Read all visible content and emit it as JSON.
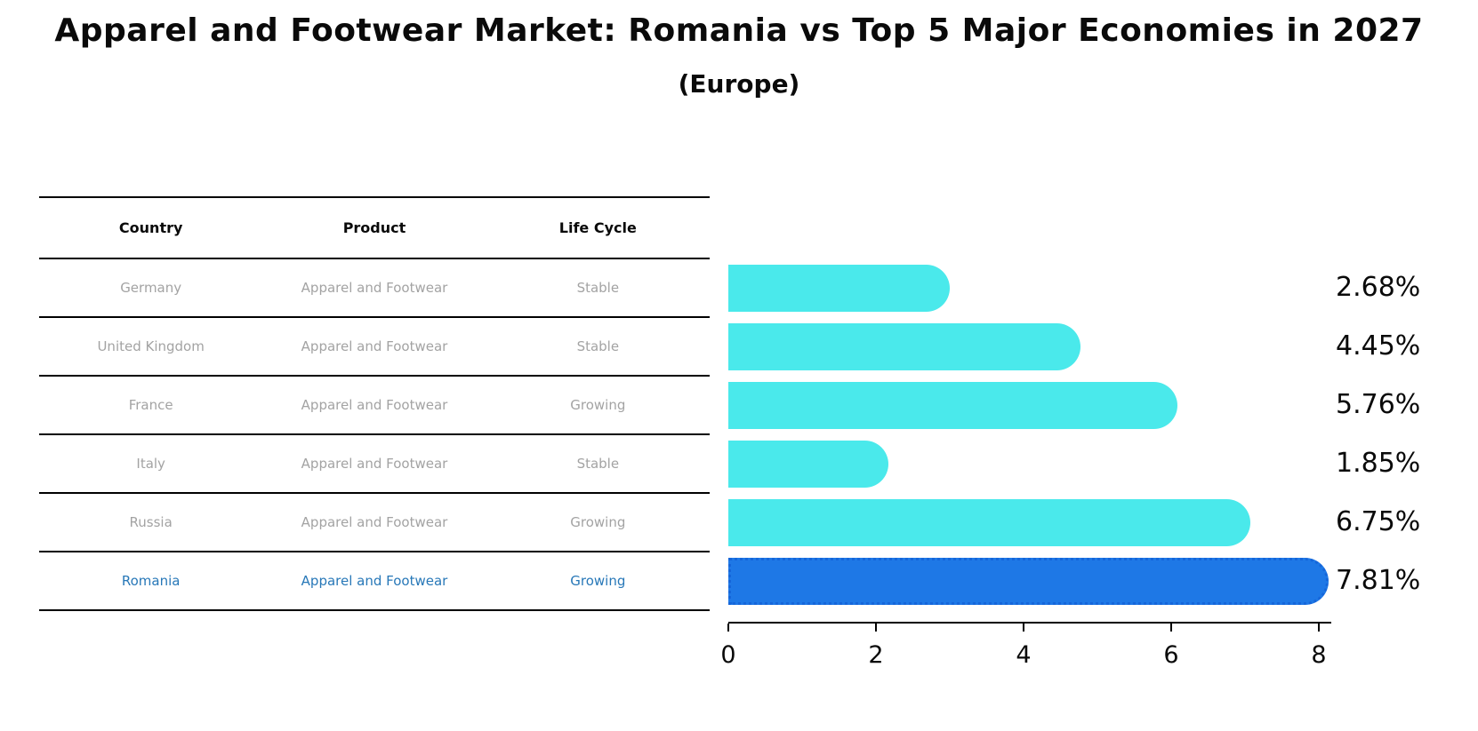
{
  "title": "Apparel and Footwear Market: Romania vs Top 5 Major Economies in 2027",
  "subtitle": "(Europe)",
  "table": {
    "headers": [
      "Country",
      "Product",
      "Life Cycle"
    ],
    "rows": [
      {
        "country": "Germany",
        "product": "Apparel and Footwear",
        "life_cycle": "Stable",
        "highlight": false
      },
      {
        "country": "United Kingdom",
        "product": "Apparel and Footwear",
        "life_cycle": "Stable",
        "highlight": false
      },
      {
        "country": "France",
        "product": "Apparel and Footwear",
        "life_cycle": "Growing",
        "highlight": false
      },
      {
        "country": "Italy",
        "product": "Apparel and Footwear",
        "life_cycle": "Stable",
        "highlight": false
      },
      {
        "country": "Russia",
        "product": "Apparel and Footwear",
        "life_cycle": "Growing",
        "highlight": false
      },
      {
        "country": "Romania",
        "product": "Apparel and Footwear",
        "life_cycle": "Growing",
        "highlight": true
      }
    ]
  },
  "chart_data": {
    "type": "bar",
    "orientation": "horizontal",
    "title": "Apparel and Footwear Market: Romania vs Top 5 Major Economies in 2027 (Europe)",
    "categories": [
      "Germany",
      "United Kingdom",
      "France",
      "Italy",
      "Russia",
      "Romania"
    ],
    "values": [
      2.68,
      4.45,
      5.76,
      1.85,
      6.75,
      7.81
    ],
    "value_labels": [
      "2.68%",
      "4.45%",
      "5.76%",
      "1.85%",
      "6.75%",
      "7.81%"
    ],
    "x_ticks": [
      0,
      2,
      4,
      6,
      8
    ],
    "xlim": [
      0,
      8.2
    ],
    "grid": false,
    "legend": false,
    "bar_color": "#4ae9eb",
    "highlight_bar_color": "#1e78e6",
    "highlight_border_color": "#1566da",
    "highlight_index": 5,
    "highlight_text_color": "#2878b8",
    "row_text_color": "#a3a3a3"
  }
}
